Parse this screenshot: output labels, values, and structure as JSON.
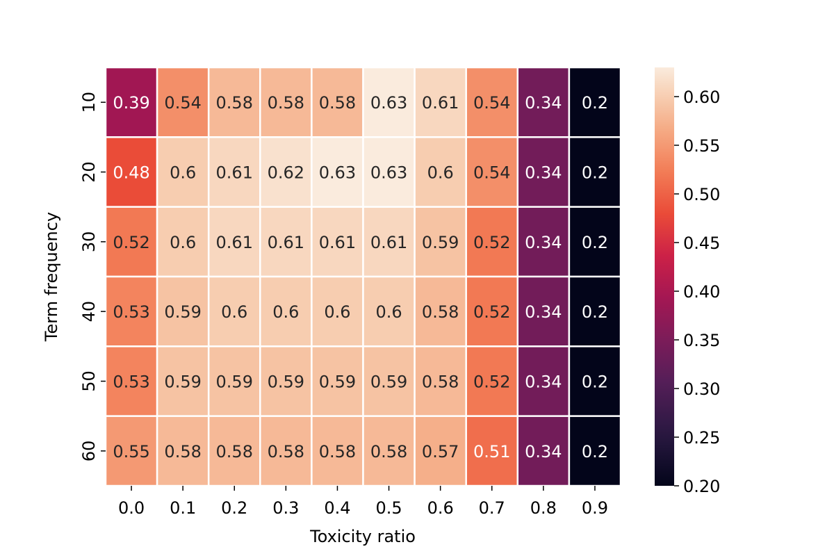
{
  "chart_data": {
    "type": "heatmap",
    "title": "",
    "xlabel": "Toxicity ratio",
    "ylabel": "Term frequency",
    "x_categories": [
      "0.0",
      "0.1",
      "0.2",
      "0.3",
      "0.4",
      "0.5",
      "0.6",
      "0.7",
      "0.8",
      "0.9"
    ],
    "y_categories": [
      "10",
      "20",
      "30",
      "40",
      "50",
      "60"
    ],
    "values": [
      [
        0.39,
        0.54,
        0.58,
        0.58,
        0.58,
        0.63,
        0.61,
        0.54,
        0.34,
        0.2
      ],
      [
        0.48,
        0.6,
        0.61,
        0.62,
        0.63,
        0.63,
        0.6,
        0.54,
        0.34,
        0.2
      ],
      [
        0.52,
        0.6,
        0.61,
        0.61,
        0.61,
        0.61,
        0.59,
        0.52,
        0.34,
        0.2
      ],
      [
        0.53,
        0.59,
        0.6,
        0.6,
        0.6,
        0.6,
        0.58,
        0.52,
        0.34,
        0.2
      ],
      [
        0.53,
        0.59,
        0.59,
        0.59,
        0.59,
        0.59,
        0.58,
        0.52,
        0.34,
        0.2
      ],
      [
        0.55,
        0.58,
        0.58,
        0.58,
        0.58,
        0.58,
        0.57,
        0.51,
        0.34,
        0.2
      ]
    ],
    "cell_labels": [
      [
        "0.39",
        "0.54",
        "0.58",
        "0.58",
        "0.58",
        "0.63",
        "0.61",
        "0.54",
        "0.34",
        "0.2"
      ],
      [
        "0.48",
        "0.6",
        "0.61",
        "0.62",
        "0.63",
        "0.63",
        "0.6",
        "0.54",
        "0.34",
        "0.2"
      ],
      [
        "0.52",
        "0.6",
        "0.61",
        "0.61",
        "0.61",
        "0.61",
        "0.59",
        "0.52",
        "0.34",
        "0.2"
      ],
      [
        "0.53",
        "0.59",
        "0.6",
        "0.6",
        "0.6",
        "0.6",
        "0.58",
        "0.52",
        "0.34",
        "0.2"
      ],
      [
        "0.53",
        "0.59",
        "0.59",
        "0.59",
        "0.59",
        "0.59",
        "0.58",
        "0.52",
        "0.34",
        "0.2"
      ],
      [
        "0.55",
        "0.58",
        "0.58",
        "0.58",
        "0.58",
        "0.58",
        "0.57",
        "0.51",
        "0.34",
        "0.2"
      ]
    ],
    "colorbar": {
      "range": [
        0.2,
        0.63
      ],
      "ticks": [
        "0.20",
        "0.25",
        "0.30",
        "0.35",
        "0.40",
        "0.45",
        "0.50",
        "0.55",
        "0.60"
      ],
      "colormap": "rocket"
    },
    "grid": false,
    "cell_border_color": "#ffffff",
    "text_dark_color": "#262626",
    "text_light_color": "#ffffff"
  }
}
